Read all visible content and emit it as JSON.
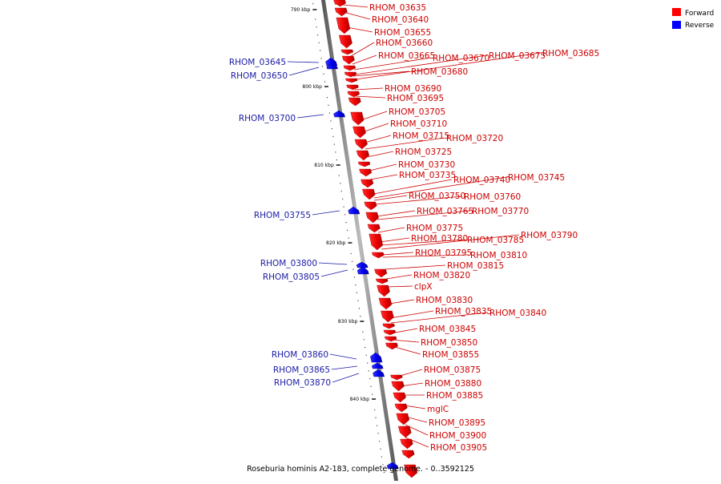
{
  "legend": [
    {
      "label": "Forward",
      "color": "#ff0000"
    },
    {
      "label": "Reverse",
      "color": "#0000ff"
    }
  ],
  "caption": "Roseburia hominis A2-183, complete genome. - 0..3592125",
  "ticks": [
    "790 kbp",
    "800 kbp",
    "810 kbp",
    "820 kbp",
    "830 kbp",
    "840 kbp"
  ],
  "forward_labels": [
    "RHOM_03635",
    "RHOM_03640",
    "RHOM_03655",
    "RHOM_03660",
    "RHOM_03665",
    "RHOM_03670",
    "RHOM_03675",
    "RHOM_03685",
    "RHOM_03680",
    "RHOM_03690",
    "RHOM_03695",
    "RHOM_03705",
    "RHOM_03710",
    "RHOM_03715",
    "RHOM_03720",
    "RHOM_03725",
    "RHOM_03730",
    "RHOM_03735",
    "RHOM_03740",
    "RHOM_03745",
    "RHOM_03750",
    "RHOM_03760",
    "RHOM_03765",
    "RHOM_03770",
    "RHOM_03775",
    "RHOM_03780",
    "RHOM_03785",
    "RHOM_03790",
    "RHOM_03795",
    "RHOM_03810",
    "RHOM_03815",
    "RHOM_03820",
    "clpX",
    "RHOM_03830",
    "RHOM_03835",
    "RHOM_03840",
    "RHOM_03845",
    "RHOM_03850",
    "RHOM_03855",
    "RHOM_03875",
    "RHOM_03880",
    "RHOM_03885",
    "mglC",
    "RHOM_03895",
    "RHOM_03900",
    "RHOM_03905"
  ],
  "reverse_labels": [
    "RHOM_03645",
    "RHOM_03650",
    "RHOM_03700",
    "RHOM_03755",
    "RHOM_03800",
    "RHOM_03805",
    "RHOM_03860",
    "RHOM_03865",
    "RHOM_03870"
  ],
  "colors": {
    "forward": "#ff0000",
    "reverse": "#0000ff",
    "forward_label": "#cc0000",
    "reverse_label": "#1a1aa6",
    "axis": "#888888"
  }
}
